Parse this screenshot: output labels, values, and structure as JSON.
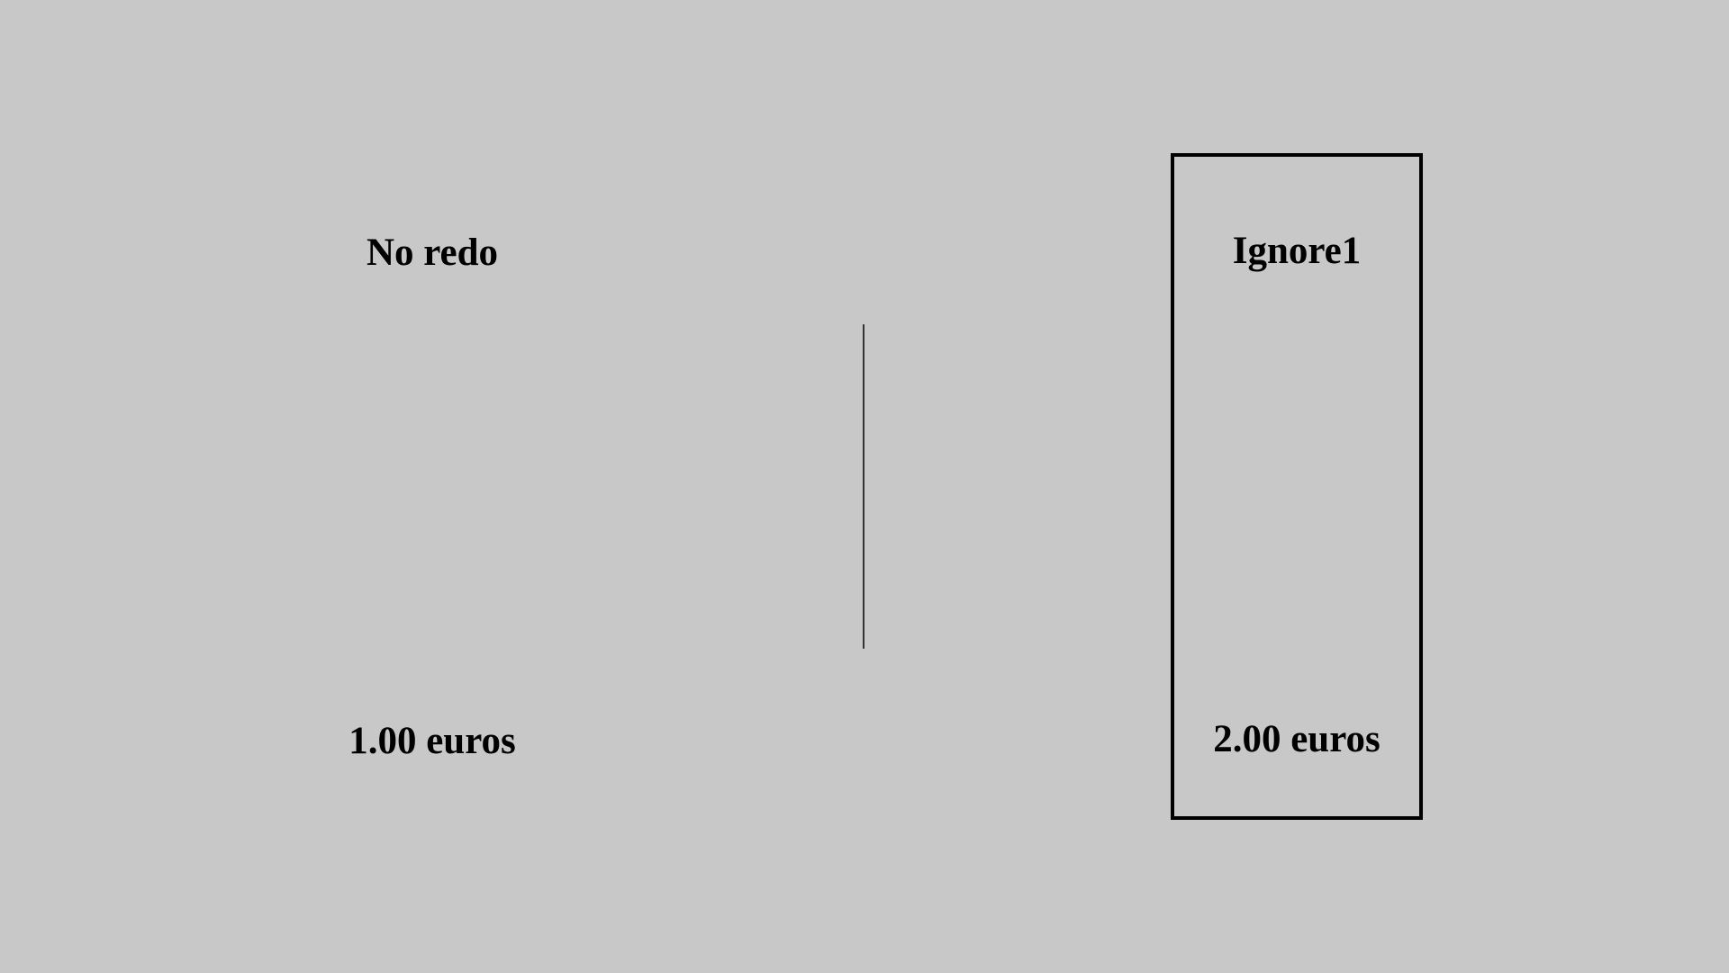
{
  "choices": {
    "left": {
      "option_label": "No redo",
      "price_label": "1.00 euros"
    },
    "right": {
      "option_label": "Ignore1",
      "price_label": "2.00 euros",
      "selected": true
    }
  },
  "colors": {
    "background": "#c8c8c8",
    "text": "#000000",
    "selection_border": "#000000",
    "divider": "#333333"
  }
}
